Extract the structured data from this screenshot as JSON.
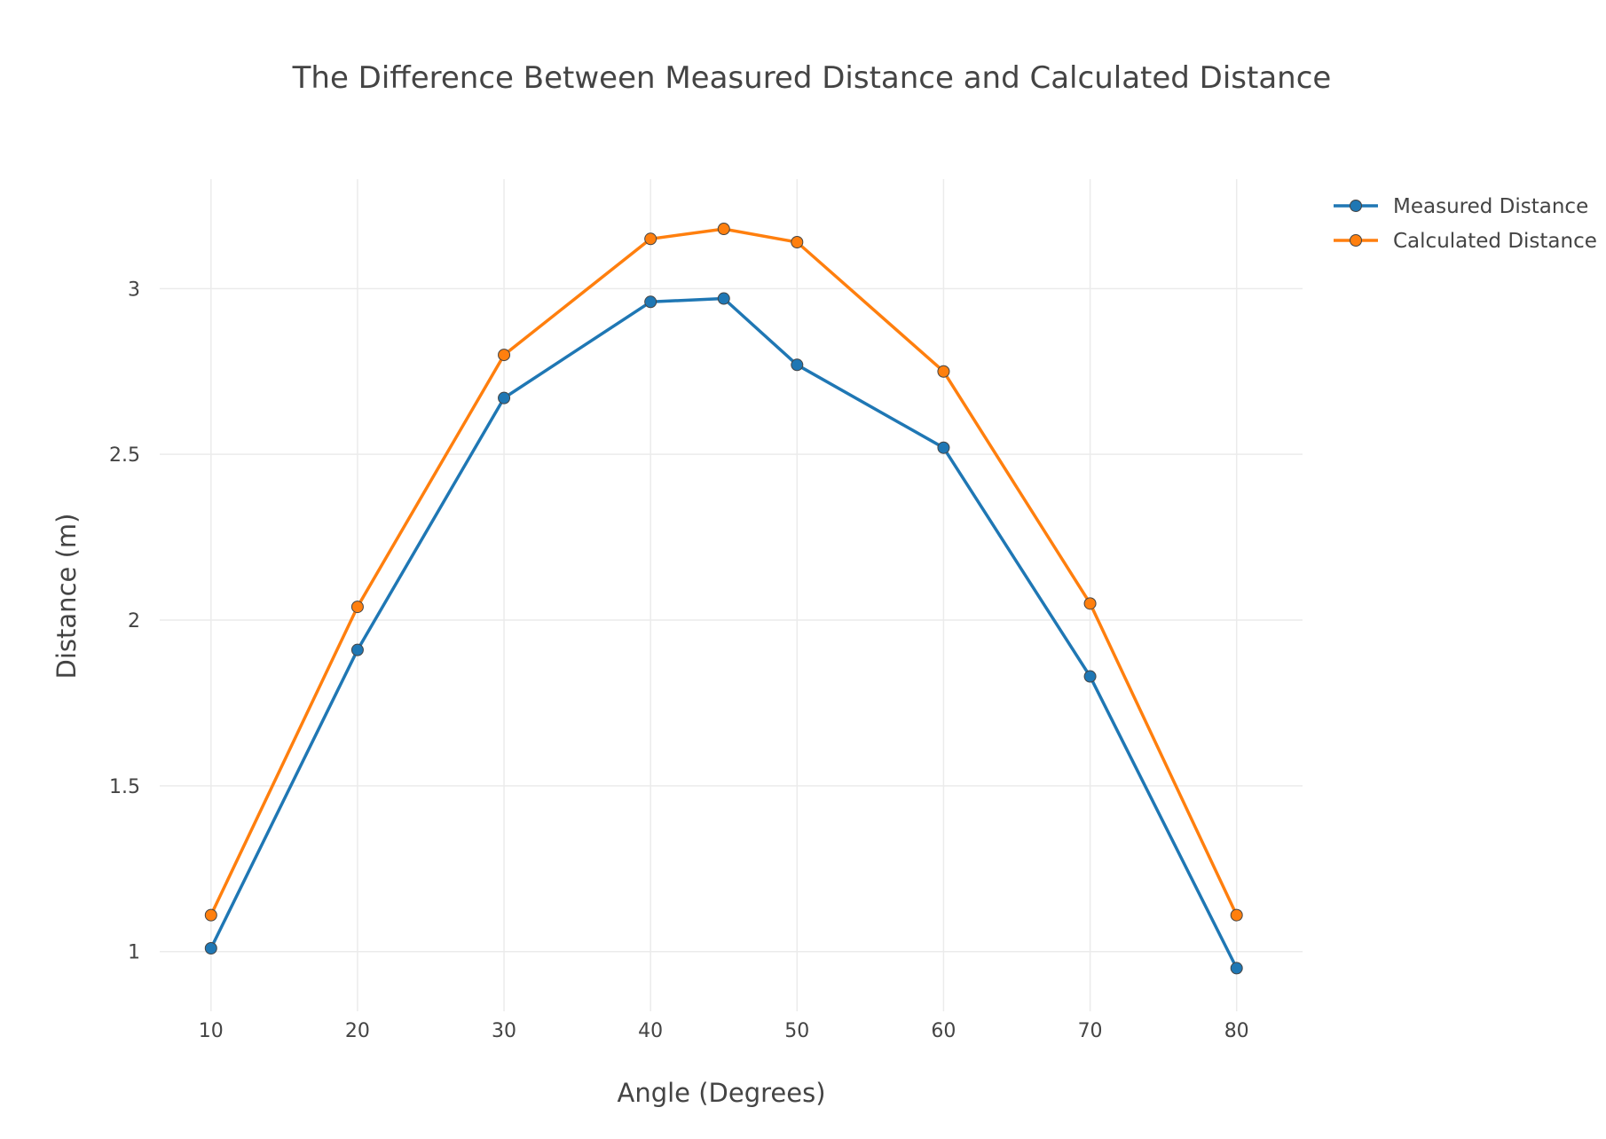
{
  "chart_data": {
    "type": "line",
    "title": "The Difference Between Measured Distance and Calculated Distance",
    "xlabel": "Angle (Degrees)",
    "ylabel": "Distance (m)",
    "x": [
      10,
      20,
      30,
      40,
      45,
      50,
      60,
      70,
      80
    ],
    "xlim": [
      6.5,
      84.5
    ],
    "ylim": [
      0.82,
      3.33
    ],
    "xticks": [
      10,
      20,
      30,
      40,
      50,
      60,
      70,
      80
    ],
    "xtick_labels": [
      "10",
      "20",
      "30",
      "40",
      "50",
      "60",
      "70",
      "80"
    ],
    "yticks": [
      1,
      1.5,
      2,
      2.5,
      3
    ],
    "ytick_labels": [
      "1",
      "1.5",
      "2",
      "2.5",
      "3"
    ],
    "grid": true,
    "legend_position": "top-right",
    "series": [
      {
        "name": "Measured Distance",
        "color": "#1f77b4",
        "values": [
          1.01,
          1.91,
          2.67,
          2.96,
          2.97,
          2.77,
          2.52,
          1.83,
          0.95
        ]
      },
      {
        "name": "Calculated Distance",
        "color": "#ff7f0e",
        "values": [
          1.11,
          2.04,
          2.8,
          3.15,
          3.18,
          3.14,
          2.75,
          2.05,
          1.11
        ]
      }
    ]
  }
}
